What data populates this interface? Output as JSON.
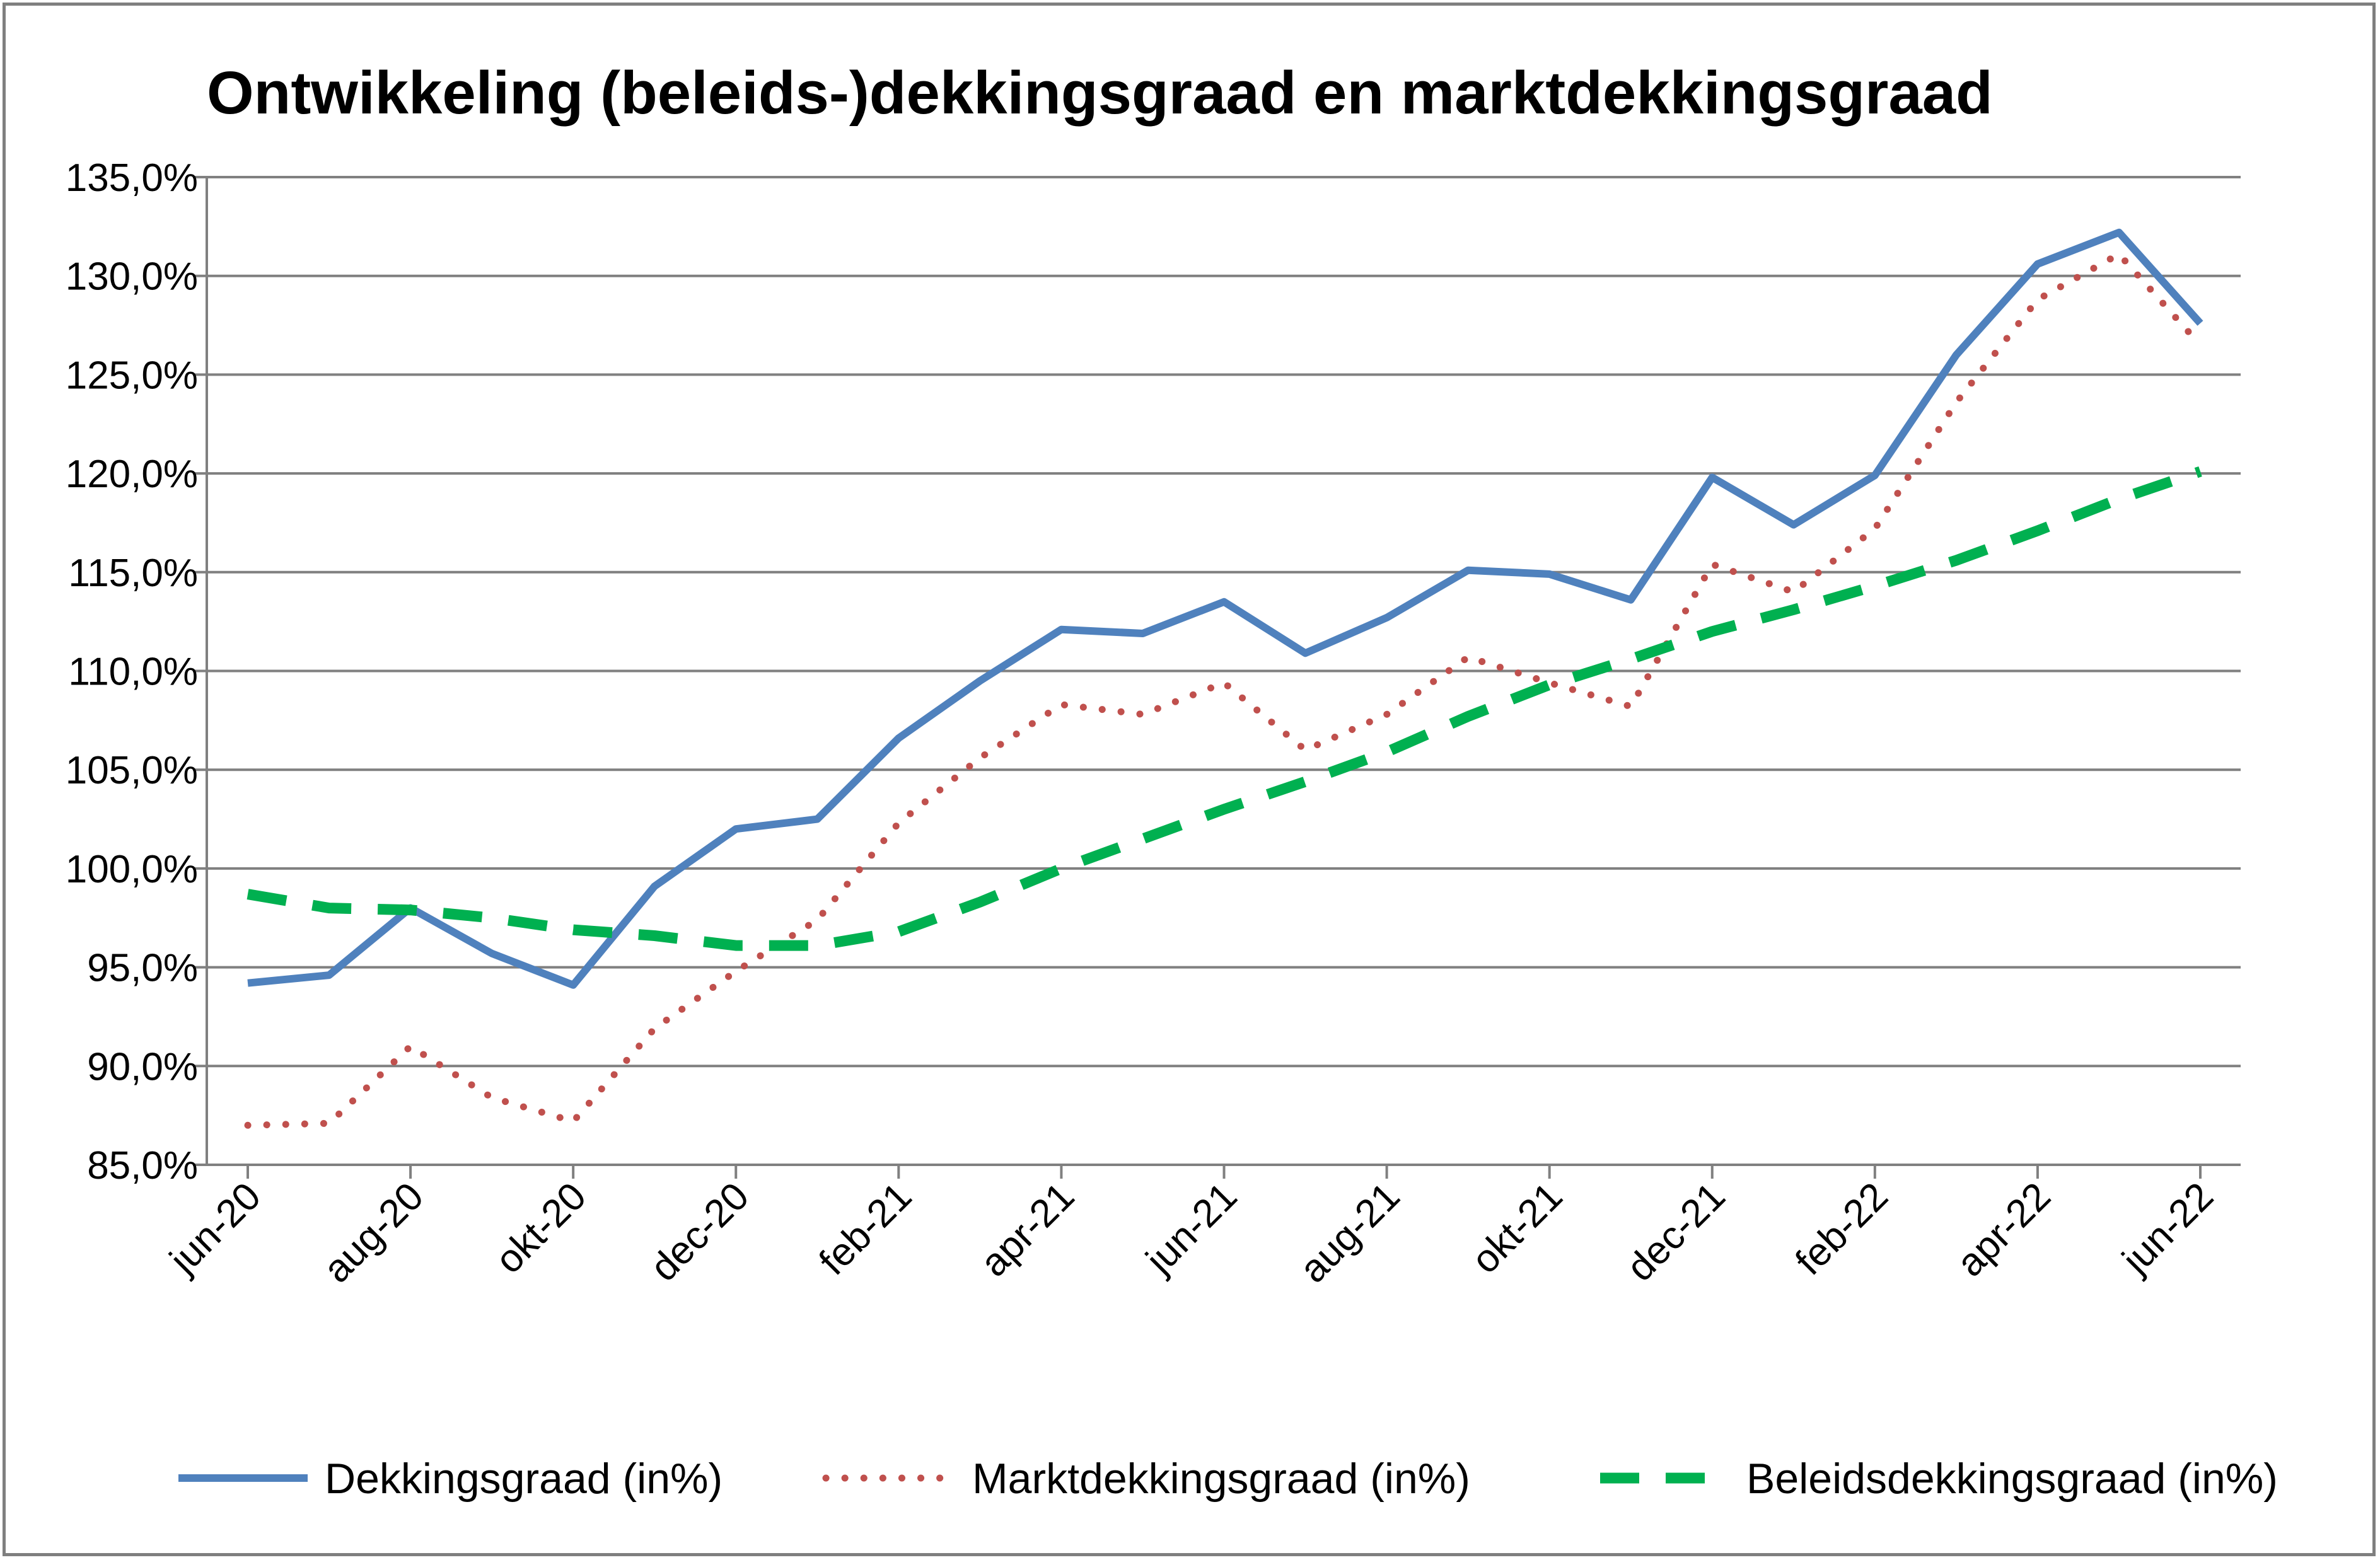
{
  "chart_data": {
    "type": "line",
    "title": "Ontwikkeling (beleids-)dekkingsgraad en marktdekkingsgraad",
    "xlabel": "",
    "ylabel": "",
    "ylim": [
      85,
      135
    ],
    "y_ticks": [
      "85,0%",
      "90,0%",
      "95,0%",
      "100,0%",
      "105,0%",
      "110,0%",
      "115,0%",
      "120,0%",
      "125,0%",
      "130,0%",
      "135,0%"
    ],
    "x_tick_labels": [
      "jun-20",
      "aug-20",
      "okt-20",
      "dec-20",
      "feb-21",
      "apr-21",
      "jun-21",
      "aug-21",
      "okt-21",
      "dec-21",
      "feb-22",
      "apr-22",
      "jun-22"
    ],
    "categories": [
      "jun-20",
      "jul-20",
      "aug-20",
      "sep-20",
      "okt-20",
      "nov-20",
      "dec-20",
      "jan-21",
      "feb-21",
      "mrt-21",
      "apr-21",
      "mei-21",
      "jun-21",
      "jul-21",
      "aug-21",
      "sep-21",
      "okt-21",
      "nov-21",
      "dec-21",
      "jan-22",
      "feb-22",
      "mrt-22",
      "apr-22",
      "mei-22",
      "jun-22"
    ],
    "grid": true,
    "legend_position": "bottom",
    "series": [
      {
        "name": "Dekkingsgraad (in%)",
        "color": "#4f81bd",
        "style": "solid",
        "values": [
          94.2,
          94.6,
          98.0,
          95.7,
          94.1,
          99.1,
          102.0,
          102.5,
          106.6,
          109.5,
          112.1,
          111.9,
          113.5,
          110.9,
          112.7,
          115.1,
          114.9,
          113.6,
          119.8,
          117.4,
          119.9,
          126.0,
          130.6,
          132.2,
          127.6
        ]
      },
      {
        "name": "Marktdekkingsgraad (in%)",
        "color": "#c0504d",
        "style": "dotted",
        "values": [
          87.0,
          87.1,
          91.0,
          88.4,
          87.2,
          91.9,
          94.8,
          97.4,
          102.3,
          105.6,
          108.3,
          107.8,
          109.4,
          106.0,
          107.8,
          110.7,
          109.4,
          108.2,
          115.4,
          114.0,
          117.2,
          123.6,
          128.8,
          131.1,
          126.5
        ]
      },
      {
        "name": "Beleidsdekkingsgraad (in%)",
        "color": "#00b050",
        "style": "dashed",
        "values": [
          98.7,
          98.0,
          97.9,
          97.5,
          96.9,
          96.6,
          96.1,
          96.1,
          96.8,
          98.3,
          100.0,
          101.5,
          103.0,
          104.4,
          105.9,
          107.7,
          109.3,
          110.6,
          112.0,
          113.1,
          114.3,
          115.6,
          117.1,
          118.7,
          120.1
        ]
      }
    ]
  }
}
